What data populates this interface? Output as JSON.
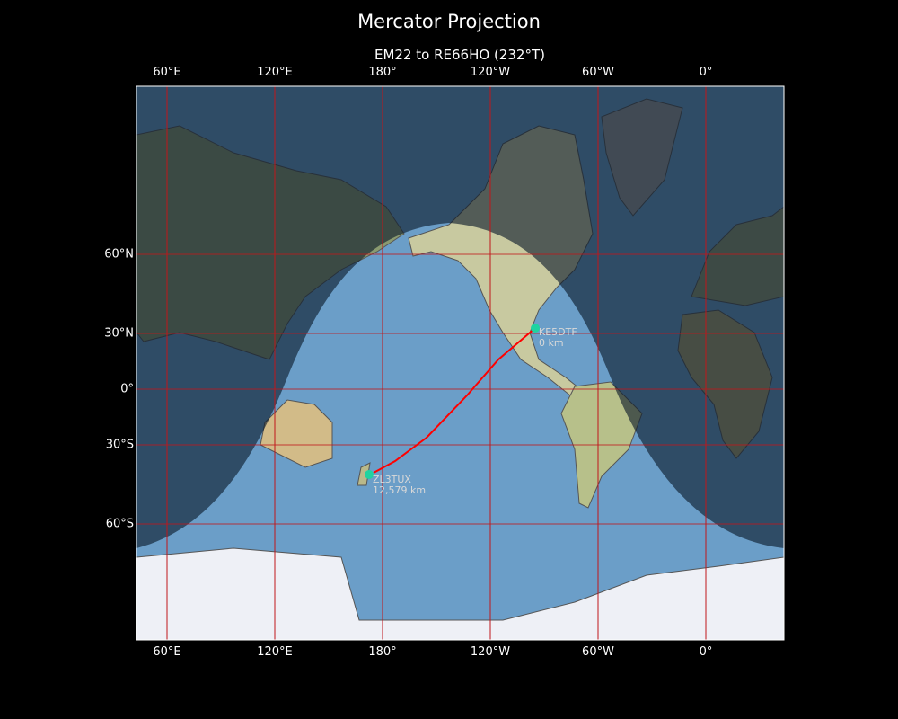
{
  "title": "Mercator Projection",
  "subtitle": "EM22 to RE66HO (232°T)",
  "lon_ticks": [
    "60°E",
    "120°E",
    "180°",
    "120°W",
    "60°W",
    "0°"
  ],
  "lat_ticks": [
    "60°N",
    "30°N",
    "0°",
    "30°S",
    "60°S"
  ],
  "stations": [
    {
      "call": "KE5DTF",
      "distance": "0 km"
    },
    {
      "call": "ZL3TUX",
      "distance": "12,579 km"
    }
  ],
  "colors": {
    "grid": "#c0161a",
    "route": "#ff0000",
    "station": "#1fd3a0",
    "ocean": "#6b9ec8",
    "night_overlay": "#0b1a2a"
  }
}
